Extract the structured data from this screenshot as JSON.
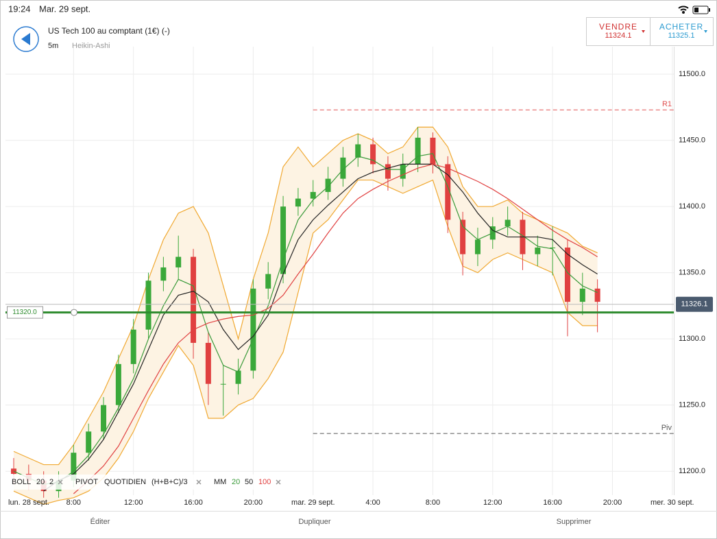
{
  "status_bar": {
    "time": "19:24",
    "date": "Mar. 29 sept."
  },
  "header": {
    "title": "US Tech 100 au comptant (1€) (-)",
    "timeframe": "5m",
    "chart_style": "Heikin-Ashi",
    "sell": {
      "label": "VENDRE",
      "price": 11324.1
    },
    "buy": {
      "label": "ACHETER",
      "price": 11325.1
    }
  },
  "chart_data": {
    "type": "candlestick",
    "x_start_label": "lun. 28 sept.",
    "x": [
      4,
      5,
      6,
      7,
      8,
      9,
      10,
      11,
      12,
      13,
      14,
      15,
      16,
      17,
      18,
      19,
      20,
      21,
      22,
      23,
      24,
      25,
      26,
      27,
      28,
      29,
      30,
      31,
      32,
      33,
      34,
      35,
      36,
      37,
      38,
      39,
      40,
      41,
      42,
      43
    ],
    "open": [
      11202,
      11198,
      11193,
      11185,
      11193,
      11214,
      11230,
      11250,
      11281,
      11307,
      11344,
      11354,
      11362,
      11297,
      11266,
      11266,
      11276,
      11338,
      11349,
      11400,
      11406,
      11411,
      11421,
      11437,
      11447,
      11432,
      11421,
      11432,
      11452,
      11432,
      11390,
      11364,
      11375,
      11385,
      11390,
      11364,
      11369,
      11369,
      11328,
      11338
    ],
    "high": [
      11210,
      11205,
      11200,
      11200,
      11220,
      11236,
      11256,
      11288,
      11315,
      11350,
      11362,
      11378,
      11368,
      11305,
      11280,
      11285,
      11345,
      11358,
      11408,
      11414,
      11420,
      11430,
      11445,
      11455,
      11452,
      11438,
      11440,
      11460,
      11456,
      11438,
      11396,
      11384,
      11392,
      11400,
      11396,
      11378,
      11385,
      11375,
      11350,
      11345
    ],
    "low": [
      11190,
      11186,
      11180,
      11180,
      11188,
      11208,
      11224,
      11244,
      11274,
      11300,
      11336,
      11345,
      11285,
      11250,
      11242,
      11258,
      11270,
      11330,
      11342,
      11393,
      11400,
      11405,
      11415,
      11430,
      11425,
      11412,
      11415,
      11426,
      11425,
      11380,
      11348,
      11355,
      11368,
      11378,
      11352,
      11355,
      11348,
      11302,
      11318,
      11305
    ],
    "close": [
      11198,
      11193,
      11185,
      11193,
      11214,
      11230,
      11250,
      11281,
      11307,
      11344,
      11354,
      11362,
      11297,
      11266,
      11266,
      11276,
      11338,
      11349,
      11400,
      11406,
      11411,
      11421,
      11437,
      11447,
      11432,
      11421,
      11432,
      11452,
      11432,
      11390,
      11364,
      11375,
      11385,
      11390,
      11364,
      11369,
      11369,
      11328,
      11338,
      11328
    ],
    "up_color": "#3aa83a",
    "down_color": "#e04040",
    "bands": {
      "color": "#f0a830",
      "fill": "#fdf3e3",
      "upper": [
        11215,
        11210,
        11205,
        11205,
        11220,
        11240,
        11260,
        11285,
        11310,
        11345,
        11375,
        11395,
        11400,
        11380,
        11340,
        11300,
        11345,
        11380,
        11430,
        11445,
        11430,
        11440,
        11450,
        11455,
        11450,
        11440,
        11445,
        11460,
        11460,
        11445,
        11415,
        11400,
        11400,
        11405,
        11395,
        11390,
        11385,
        11380,
        11370,
        11365
      ],
      "lower": [
        11185,
        11180,
        11175,
        11178,
        11180,
        11185,
        11195,
        11210,
        11230,
        11255,
        11275,
        11295,
        11280,
        11240,
        11240,
        11250,
        11255,
        11270,
        11290,
        11335,
        11380,
        11390,
        11405,
        11420,
        11420,
        11415,
        11410,
        11415,
        11420,
        11385,
        11355,
        11350,
        11360,
        11365,
        11360,
        11355,
        11350,
        11320,
        11310,
        11310
      ]
    },
    "series": [
      {
        "name": "20",
        "color": "#3a9a3a",
        "values": [
          11200,
          11195,
          11190,
          11192,
          11200,
          11212,
          11228,
          11248,
          11270,
          11300,
          11325,
          11345,
          11340,
          11305,
          11280,
          11275,
          11300,
          11325,
          11360,
          11390,
          11405,
          11415,
          11428,
          11438,
          11435,
          11428,
          11428,
          11438,
          11440,
          11415,
          11385,
          11375,
          11380,
          11385,
          11378,
          11370,
          11368,
          11350,
          11340,
          11335
        ]
      },
      {
        "name": "50",
        "color": "#222222",
        "values": [
          null,
          null,
          11185,
          11193,
          11198,
          11209,
          11224,
          11245,
          11266,
          11292,
          11318,
          11333,
          11336,
          11328,
          11307,
          11292,
          11302,
          11318,
          11349,
          11375,
          11390,
          11401,
          11411,
          11421,
          11426,
          11429,
          11432,
          11432,
          11432,
          11424,
          11411,
          11395,
          11382,
          11377,
          11377,
          11377,
          11375,
          11364,
          11356,
          11349
        ]
      },
      {
        "name": "100",
        "color": "#e04040",
        "values": [
          null,
          null,
          null,
          null,
          11183,
          11193,
          11204,
          11219,
          11240,
          11261,
          11281,
          11297,
          11307,
          11312,
          11315,
          11317,
          11318,
          11323,
          11333,
          11349,
          11364,
          11380,
          11395,
          11406,
          11413,
          11419,
          11424,
          11429,
          11432,
          11429,
          11424,
          11419,
          11413,
          11406,
          11398,
          11390,
          11382,
          11375,
          11369,
          11362
        ]
      }
    ],
    "levels": [
      {
        "name": "R1",
        "value": 11473,
        "color": "#e05050"
      },
      {
        "name": "Piv",
        "value": 11228.5,
        "color": "#555555"
      }
    ],
    "order_line": {
      "value": 11320,
      "label": "11320.0",
      "color": "#2e8b2e"
    },
    "current_price": 11326.1,
    "xlim": [
      3.45,
      48.1
    ],
    "ylim": [
      11183,
      11512
    ],
    "xticks": [
      {
        "value": 8,
        "label": "8:00"
      },
      {
        "value": 12,
        "label": "12:00"
      },
      {
        "value": 16,
        "label": "16:00"
      },
      {
        "value": 20,
        "label": "20:00"
      },
      {
        "value": 24,
        "label": "mar. 29 sept."
      },
      {
        "value": 28,
        "label": "4:00"
      },
      {
        "value": 32,
        "label": "8:00"
      },
      {
        "value": 36,
        "label": "12:00"
      },
      {
        "value": 40,
        "label": "16:00"
      },
      {
        "value": 44,
        "label": "20:00"
      },
      {
        "value": 48,
        "label": "mer. 30 sept."
      }
    ],
    "yticks": [
      {
        "value": 11200,
        "label": "11200.0"
      },
      {
        "value": 11250,
        "label": "11250.0"
      },
      {
        "value": 11300,
        "label": "11300.0"
      },
      {
        "value": 11350,
        "label": "11350.0"
      },
      {
        "value": 11400,
        "label": "11400.0"
      },
      {
        "value": 11450,
        "label": "11450.0"
      },
      {
        "value": 11500,
        "label": "11500.0"
      }
    ],
    "grid": true
  },
  "indicators": {
    "bollinger": {
      "label": "BOLL",
      "period": 20,
      "deviation": 2
    },
    "pivot": {
      "label": "PIVOT",
      "period": "QUOTIDIEN",
      "formula": "(H+B+C)/3"
    },
    "moving_average": {
      "label": "MM"
    }
  },
  "toolbar": {
    "edit": "Éditer",
    "duplicate": "Dupliquer",
    "delete": "Supprimer"
  }
}
